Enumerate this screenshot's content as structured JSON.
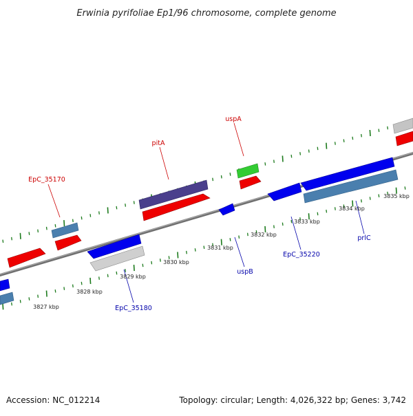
{
  "title": "Erwinia pyrifoliae Ep1/96 chromosome, complete genome",
  "footer": {
    "accession": "Accession: NC_012214",
    "summary": "Topology: circular; Length: 4,026,322 bp; Genes: 3,742"
  },
  "colors": {
    "backbone": "#8a8a8a",
    "tick": "#1c7a1c",
    "label_top": "#cc0000",
    "label_bottom": "#0000aa"
  },
  "tick_labels": [
    "3827 kbp",
    "3828 kbp",
    "3829 kbp",
    "3830 kbp",
    "3831 kbp",
    "3832 kbp",
    "3833 kbp",
    "3834 kbp",
    "3835 kbp"
  ],
  "gene_labels": [
    {
      "text": "EpC_35170",
      "side": "top"
    },
    {
      "text": "pitA",
      "side": "top"
    },
    {
      "text": "uspA",
      "side": "top"
    },
    {
      "text": "EpC_35180",
      "side": "bottom"
    },
    {
      "text": "uspB",
      "side": "bottom"
    },
    {
      "text": "EpC_35220",
      "side": "bottom"
    },
    {
      "text": "prlC",
      "side": "bottom"
    }
  ]
}
